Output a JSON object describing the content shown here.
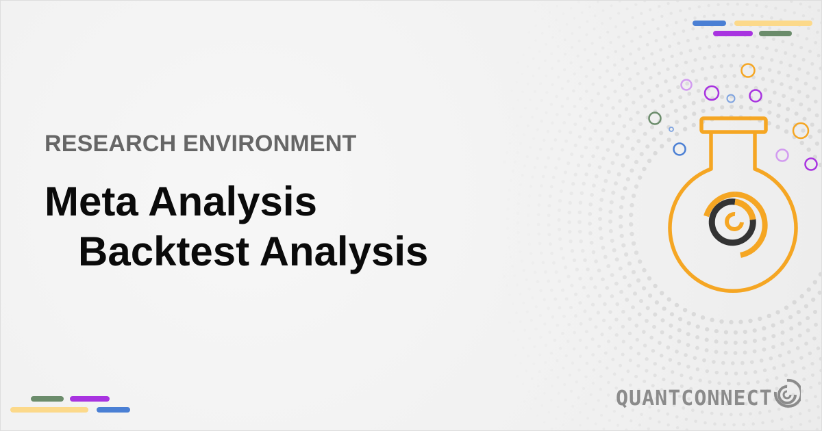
{
  "header": {
    "eyebrow": "RESEARCH ENVIRONMENT",
    "title": "Meta Analysis",
    "subtitle": "Backtest Analysis"
  },
  "brand": {
    "name": "QUANTCONNECT",
    "logo_icon": "quantconnect-logo-icon"
  },
  "illustration": {
    "icon": "flask-icon",
    "bubbles_icon": "bubbles-icon"
  },
  "colors": {
    "accent_orange": "#f5a623",
    "blue": "#4a7fd4",
    "purple": "#a833e0",
    "green": "#6b8c6b",
    "yellow": "#fcd98a",
    "dark": "#333333",
    "text_gray": "#666666"
  }
}
